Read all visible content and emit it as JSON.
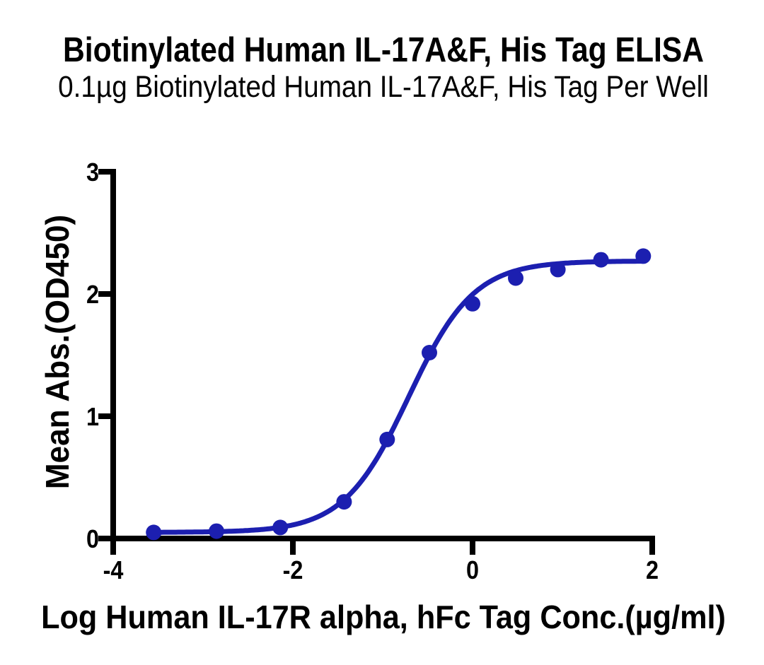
{
  "figure": {
    "background": "#FFFFFF"
  },
  "chart_data": {
    "type": "scatter",
    "title": "Biotinylated Human IL-17A&F, His Tag ELISA",
    "subtitle": "0.1µg Biotinylated Human IL-17A&F, His Tag Per Well",
    "xlabel": "Log Human IL-17R alpha, hFc Tag Conc.(µg/ml)",
    "ylabel": "Mean Abs.(OD450)",
    "xlim": [
      -4,
      2
    ],
    "ylim": [
      0,
      3
    ],
    "x_ticks": [
      "-4",
      "-2",
      "0",
      "2"
    ],
    "x_tick_values": [
      -4,
      -2,
      0,
      2
    ],
    "y_ticks": [
      "0",
      "1",
      "2",
      "3"
    ],
    "y_tick_values": [
      0,
      1,
      2,
      3
    ],
    "grid": false,
    "legend": "none",
    "axis_color": "#000000",
    "text_color": "#000000",
    "series": [
      {
        "name": "Biotinylated Human IL-17A&F, His Tag",
        "marker": "circle",
        "color": "#1C1FB0",
        "x": [
          -3.55,
          -2.85,
          -2.14,
          -1.43,
          -0.95,
          -0.48,
          0.0,
          0.48,
          0.95,
          1.43,
          1.9
        ],
        "y": [
          0.05,
          0.06,
          0.09,
          0.3,
          0.81,
          1.52,
          1.92,
          2.13,
          2.2,
          2.28,
          2.31
        ]
      }
    ],
    "fit_curve": {
      "model": "4PL",
      "bottom": 0.05,
      "top": 2.27,
      "logEC50": -0.71,
      "hillslope": 1.2,
      "x_start": -3.55,
      "x_end": 1.9
    }
  }
}
